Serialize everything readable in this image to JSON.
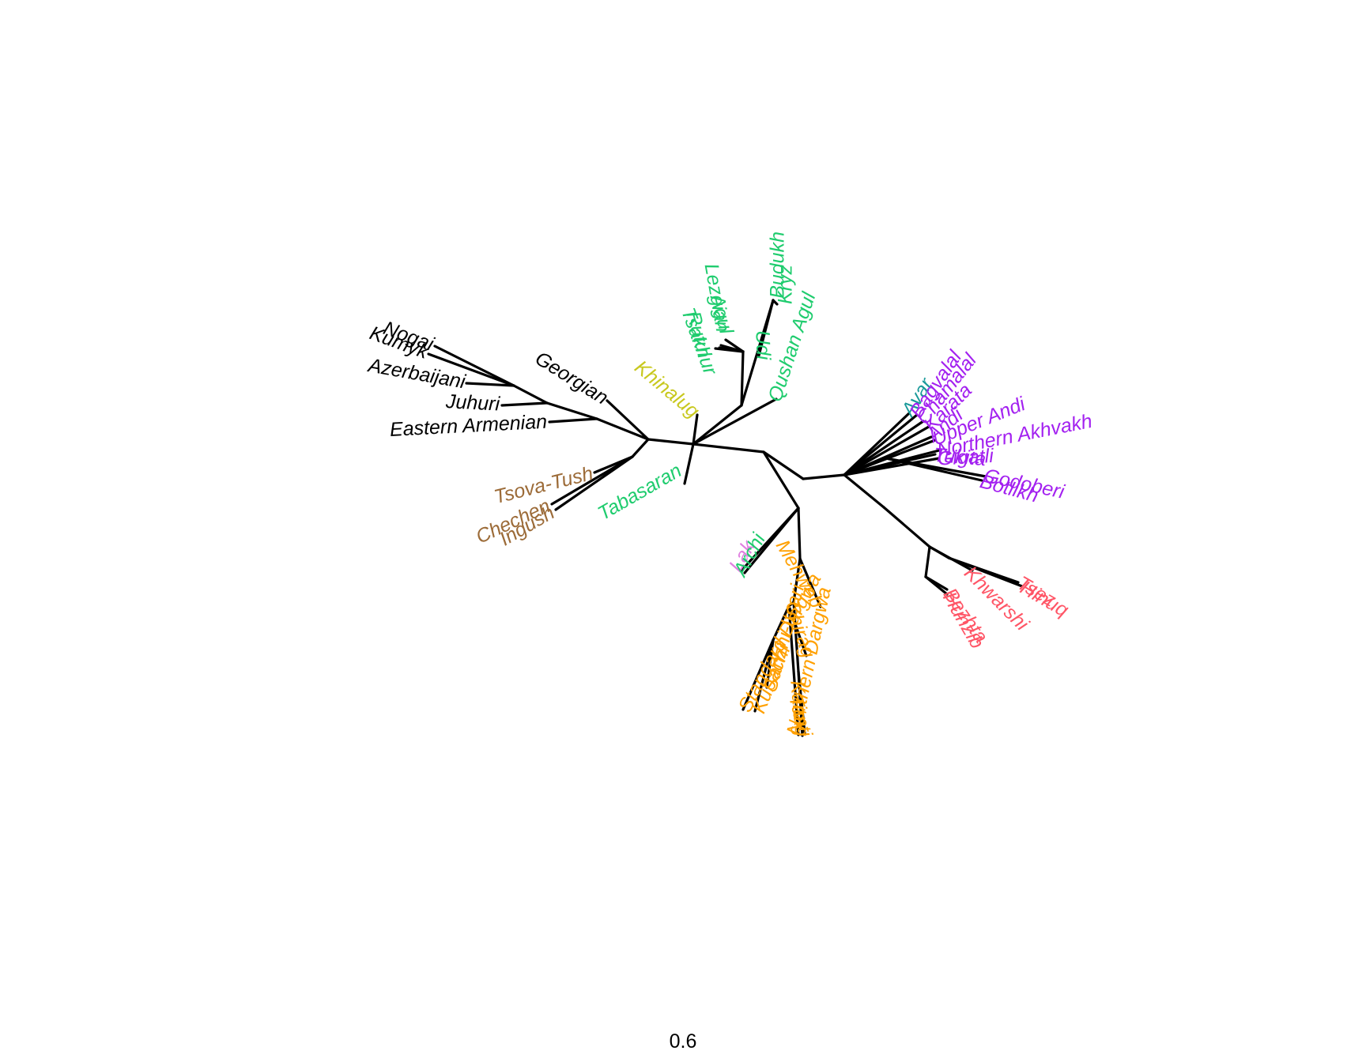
{
  "scale": {
    "label": "0.6"
  },
  "colors": {
    "turkic_other": "#000000",
    "nakh": "#9C6B38",
    "lezgic": "#1FCC6E",
    "khinalug": "#C8C81E",
    "avar_andic": "#A321F0",
    "avar": "#1A9A9A",
    "tsezic": "#FF5566",
    "dargwa": "#FFA000",
    "lak": "#E07FE0",
    "branch": "#000000"
  },
  "taxa": [
    {
      "id": "nogai",
      "label": "Nogai",
      "group": "turkic_other"
    },
    {
      "id": "kumyk",
      "label": "Kumyk",
      "group": "turkic_other"
    },
    {
      "id": "azerbaijani",
      "label": "Azerbaijani",
      "group": "turkic_other"
    },
    {
      "id": "juhuri",
      "label": "Juhuri",
      "group": "turkic_other"
    },
    {
      "id": "eastern_armenian",
      "label": "Eastern Armenian",
      "group": "turkic_other"
    },
    {
      "id": "georgian",
      "label": "Georgian",
      "group": "turkic_other"
    },
    {
      "id": "tsova_tush",
      "label": "Tsova-Tush",
      "group": "nakh"
    },
    {
      "id": "chechen",
      "label": "Chechen",
      "group": "nakh"
    },
    {
      "id": "ingush",
      "label": "Ingush",
      "group": "nakh"
    },
    {
      "id": "khinalug",
      "label": "Khinalug",
      "group": "khinalug"
    },
    {
      "id": "tabasaran",
      "label": "Tabasaran",
      "group": "lezgic"
    },
    {
      "id": "lezgian",
      "label": "Lezgian",
      "group": "lezgic"
    },
    {
      "id": "agul",
      "label": "Agul",
      "group": "lezgic"
    },
    {
      "id": "tsakhur",
      "label": "Tsakhur",
      "group": "lezgic"
    },
    {
      "id": "rutul",
      "label": "Rutul",
      "group": "lezgic"
    },
    {
      "id": "udi",
      "label": "Udi",
      "group": "lezgic"
    },
    {
      "id": "budukh",
      "label": "Budukh",
      "group": "lezgic"
    },
    {
      "id": "kryz",
      "label": "Kryz",
      "group": "lezgic"
    },
    {
      "id": "qushan_agul",
      "label": "Qushan Agul",
      "group": "lezgic"
    },
    {
      "id": "avar",
      "label": "Avar",
      "group": "avar"
    },
    {
      "id": "bagvalal",
      "label": "Bagvalal",
      "group": "avar_andic"
    },
    {
      "id": "chamalal",
      "label": "Chamalal",
      "group": "avar_andic"
    },
    {
      "id": "karata",
      "label": "Karata",
      "group": "avar_andic"
    },
    {
      "id": "andi",
      "label": "Andi",
      "group": "avar_andic"
    },
    {
      "id": "upper_andi",
      "label": "Upper Andi",
      "group": "avar_andic"
    },
    {
      "id": "northern_akhvakh",
      "label": "Northern Akhvakh",
      "group": "avar_andic"
    },
    {
      "id": "tukita",
      "label": "Tukita",
      "group": "avar_andic"
    },
    {
      "id": "gigatli",
      "label": "Gigatli",
      "group": "avar_andic"
    },
    {
      "id": "godoberi",
      "label": "Godoberi",
      "group": "avar_andic"
    },
    {
      "id": "botlikh",
      "label": "Botlikh",
      "group": "avar_andic"
    },
    {
      "id": "tsez",
      "label": "Tsez",
      "group": "tsezic"
    },
    {
      "id": "hinuq",
      "label": "Hinuq",
      "group": "tsezic"
    },
    {
      "id": "khwarshi",
      "label": "Khwarshi",
      "group": "tsezic"
    },
    {
      "id": "bezhta",
      "label": "Bezhta",
      "group": "tsezic"
    },
    {
      "id": "hunzib",
      "label": "Hunzib",
      "group": "tsezic"
    },
    {
      "id": "lak",
      "label": "Lak",
      "group": "lak"
    },
    {
      "id": "archi",
      "label": "Archi",
      "group": "lezgic"
    },
    {
      "id": "mehweb",
      "label": "Mehweb",
      "group": "dargwa"
    },
    {
      "id": "chirag",
      "label": "Chirag",
      "group": "dargwa"
    },
    {
      "id": "kaitag",
      "label": "Kaitag",
      "group": "dargwa"
    },
    {
      "id": "tanti",
      "label": "Tanti",
      "group": "dargwa"
    },
    {
      "id": "northern_dargwa",
      "label": "Northern Dargwa",
      "group": "dargwa"
    },
    {
      "id": "sanzhi_itsari",
      "label": "Sanzhi-Itsari",
      "group": "dargwa"
    },
    {
      "id": "kubachi",
      "label": "Kubachi",
      "group": "dargwa"
    },
    {
      "id": "standard_dargwa",
      "label": "Standard Dargwa",
      "group": "dargwa"
    }
  ]
}
